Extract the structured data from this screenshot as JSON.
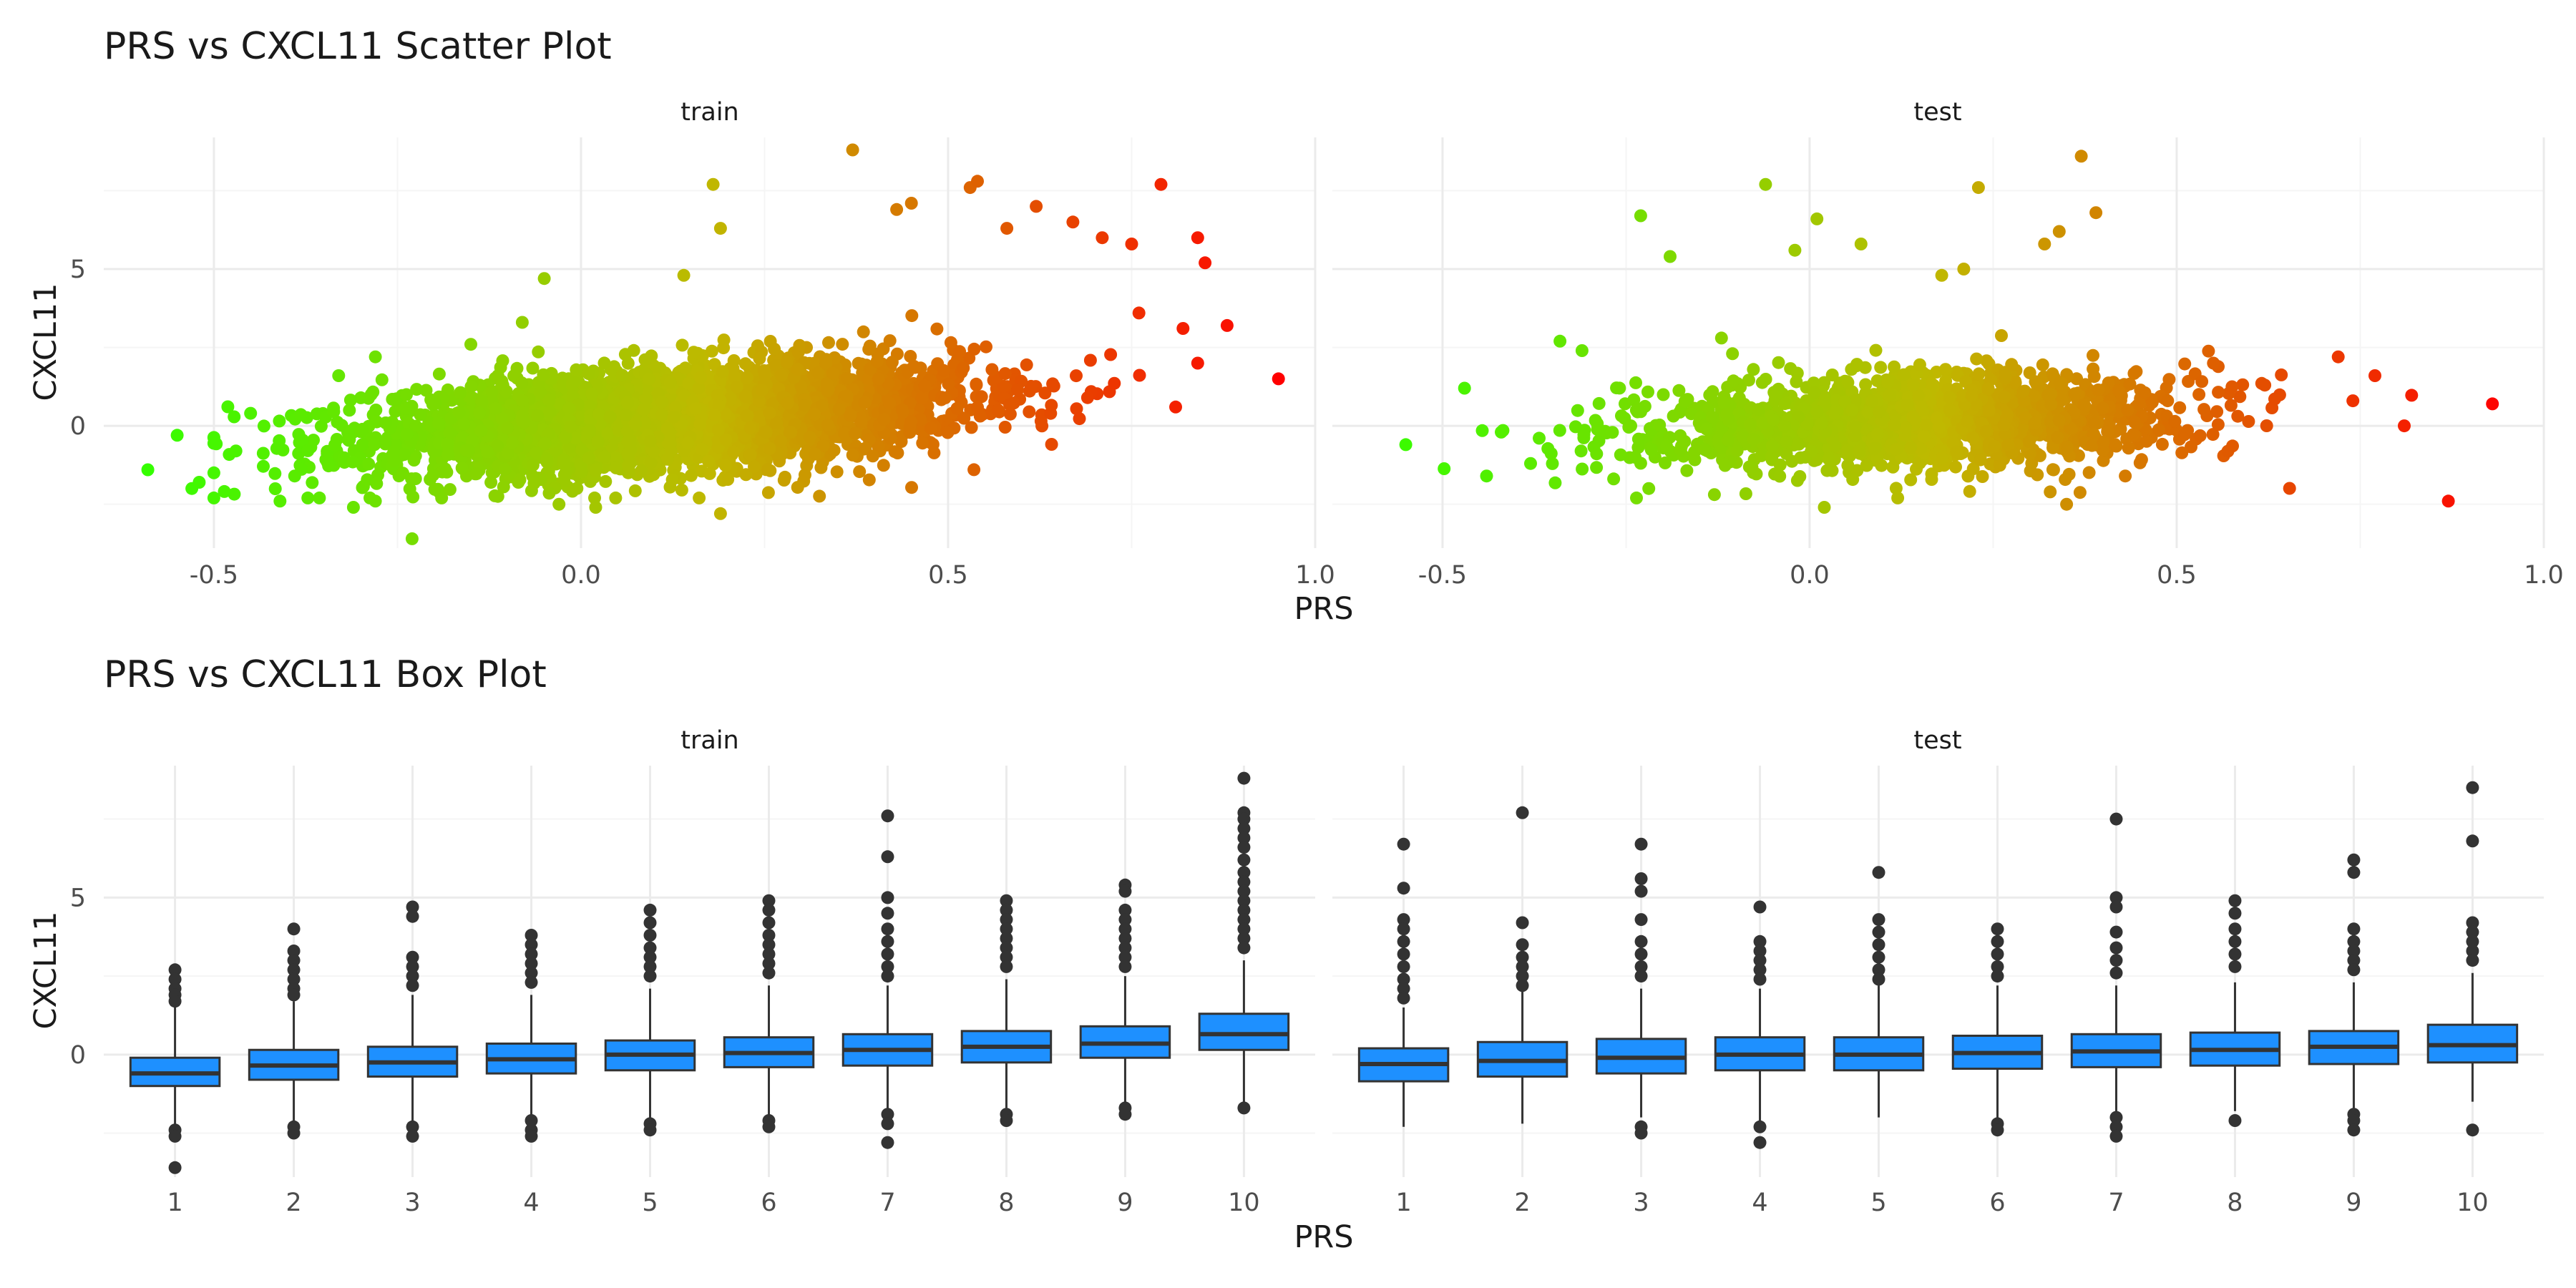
{
  "figure": {
    "colors": {
      "background": "#ffffff",
      "grid_major": "#ebebeb",
      "grid_minor": "#f5f5f5",
      "box_fill": "#1e90ff",
      "box_stroke": "#333333",
      "point_low": "#33ff00",
      "point_mid": "#c0b800",
      "point_high": "#ff0000"
    }
  },
  "chart_data": [
    {
      "type": "scatter",
      "title": "PRS vs CXCL11 Scatter Plot",
      "xlabel": "PRS",
      "ylabel": "CXCL11",
      "color_by": "PRS",
      "facets": [
        "train",
        "test"
      ],
      "xlim": [
        -0.65,
        1.0
      ],
      "ylim": [
        -3.9,
        9.2
      ],
      "x_ticks": [
        -0.5,
        0.0,
        0.5,
        1.0
      ],
      "x_tick_labels": [
        "-0.5",
        "0.0",
        "0.5",
        "1.0"
      ],
      "y_ticks": [
        0,
        5
      ],
      "y_tick_labels": [
        "0",
        "5"
      ],
      "grid": true,
      "legend": "none",
      "series": [
        {
          "facet": "train",
          "distribution": {
            "n": 3500,
            "x_mean": 0.12,
            "x_sd": 0.2,
            "intercept": 0.05,
            "slope": 1.6,
            "resid_sd": 0.8
          },
          "points": [
            [
              -0.59,
              -1.4
            ],
            [
              -0.55,
              -0.3
            ],
            [
              -0.53,
              -2.0
            ],
            [
              -0.52,
              -1.8
            ],
            [
              -0.47,
              -0.8
            ],
            [
              -0.45,
              0.4
            ],
            [
              -0.41,
              -2.4
            ],
            [
              -0.39,
              -1.6
            ],
            [
              -0.33,
              1.6
            ],
            [
              -0.31,
              -2.6
            ],
            [
              -0.28,
              -2.4
            ],
            [
              -0.28,
              2.2
            ],
            [
              -0.23,
              -3.6
            ],
            [
              -0.15,
              2.6
            ],
            [
              -0.08,
              3.3
            ],
            [
              -0.05,
              4.7
            ],
            [
              -0.03,
              -2.5
            ],
            [
              0.02,
              -2.6
            ],
            [
              0.14,
              4.8
            ],
            [
              0.18,
              7.7
            ],
            [
              0.19,
              6.3
            ],
            [
              0.19,
              -2.8
            ],
            [
              0.37,
              8.8
            ],
            [
              0.43,
              6.9
            ],
            [
              0.45,
              7.1
            ],
            [
              0.53,
              7.6
            ],
            [
              0.54,
              7.8
            ],
            [
              0.58,
              6.3
            ],
            [
              0.62,
              7.0
            ],
            [
              0.67,
              6.5
            ],
            [
              0.71,
              6.0
            ],
            [
              0.75,
              5.8
            ],
            [
              0.79,
              7.7
            ],
            [
              0.84,
              6.0
            ],
            [
              0.85,
              5.2
            ],
            [
              0.88,
              3.2
            ],
            [
              0.84,
              2.0
            ],
            [
              0.81,
              0.6
            ],
            [
              0.76,
              3.6
            ],
            [
              0.69,
              0.9
            ],
            [
              0.95,
              1.5
            ]
          ]
        },
        {
          "facet": "test",
          "distribution": {
            "n": 1500,
            "x_mean": 0.14,
            "x_sd": 0.19,
            "intercept": 0.05,
            "slope": 0.7,
            "resid_sd": 0.75
          },
          "points": [
            [
              -0.55,
              -0.6
            ],
            [
              -0.47,
              1.2
            ],
            [
              -0.44,
              -1.6
            ],
            [
              -0.42,
              -0.2
            ],
            [
              -0.38,
              -1.2
            ],
            [
              -0.34,
              2.7
            ],
            [
              -0.31,
              2.4
            ],
            [
              -0.23,
              6.7
            ],
            [
              -0.19,
              5.4
            ],
            [
              -0.12,
              2.8
            ],
            [
              -0.06,
              7.7
            ],
            [
              -0.02,
              5.6
            ],
            [
              0.01,
              6.6
            ],
            [
              0.02,
              -2.6
            ],
            [
              0.07,
              5.8
            ],
            [
              0.12,
              -2.3
            ],
            [
              0.18,
              4.8
            ],
            [
              0.21,
              5.0
            ],
            [
              0.23,
              7.6
            ],
            [
              0.32,
              5.8
            ],
            [
              0.34,
              6.2
            ],
            [
              0.37,
              8.6
            ],
            [
              0.39,
              6.8
            ],
            [
              0.35,
              -2.5
            ],
            [
              0.43,
              -1.6
            ],
            [
              0.55,
              2.0
            ],
            [
              0.62,
              1.3
            ],
            [
              0.72,
              2.2
            ],
            [
              0.74,
              0.8
            ],
            [
              0.77,
              1.6
            ],
            [
              0.81,
              0.0
            ],
            [
              0.87,
              -2.4
            ],
            [
              0.93,
              0.7
            ]
          ]
        }
      ]
    },
    {
      "type": "box",
      "title": "PRS vs CXCL11 Box Plot",
      "xlabel": "PRS",
      "ylabel": "CXCL11",
      "facets": [
        "train",
        "test"
      ],
      "categories": [
        "1",
        "2",
        "3",
        "4",
        "5",
        "6",
        "7",
        "8",
        "9",
        "10"
      ],
      "ylim": [
        -3.9,
        9.2
      ],
      "y_ticks": [
        0,
        5
      ],
      "y_tick_labels": [
        "0",
        "5"
      ],
      "grid": true,
      "legend": "none",
      "series": [
        {
          "facet": "train",
          "boxes": [
            {
              "q1": -1.0,
              "median": -0.6,
              "q3": -0.1,
              "lo": -2.3,
              "hi": 1.5,
              "outliers": [
                2.7,
                2.4,
                2.1,
                1.9,
                1.7,
                -2.4,
                -2.6,
                -3.6
              ]
            },
            {
              "q1": -0.8,
              "median": -0.35,
              "q3": 0.15,
              "lo": -2.2,
              "hi": 1.7,
              "outliers": [
                4.0,
                3.3,
                3.0,
                2.7,
                2.4,
                2.1,
                1.9,
                -2.3,
                -2.5
              ]
            },
            {
              "q1": -0.7,
              "median": -0.25,
              "q3": 0.25,
              "lo": -2.2,
              "hi": 1.9,
              "outliers": [
                4.7,
                4.4,
                3.1,
                2.8,
                2.5,
                2.2,
                -2.3,
                -2.6
              ]
            },
            {
              "q1": -0.6,
              "median": -0.15,
              "q3": 0.35,
              "lo": -2.0,
              "hi": 1.9,
              "outliers": [
                3.8,
                3.5,
                3.2,
                2.9,
                2.6,
                2.3,
                -2.1,
                -2.4,
                -2.6
              ]
            },
            {
              "q1": -0.5,
              "median": 0.0,
              "q3": 0.45,
              "lo": -2.1,
              "hi": 2.1,
              "outliers": [
                4.6,
                4.2,
                3.8,
                3.4,
                3.1,
                2.8,
                2.5,
                -2.2,
                -2.4
              ]
            },
            {
              "q1": -0.4,
              "median": 0.05,
              "q3": 0.55,
              "lo": -2.0,
              "hi": 2.2,
              "outliers": [
                4.9,
                4.6,
                4.2,
                3.8,
                3.5,
                3.2,
                2.9,
                2.6,
                -2.1,
                -2.3
              ]
            },
            {
              "q1": -0.35,
              "median": 0.15,
              "q3": 0.65,
              "lo": -1.8,
              "hi": 2.2,
              "outliers": [
                7.6,
                6.3,
                5.0,
                4.5,
                4.0,
                3.6,
                3.2,
                2.8,
                2.5,
                -1.9,
                -2.2,
                -2.8
              ]
            },
            {
              "q1": -0.25,
              "median": 0.25,
              "q3": 0.75,
              "lo": -1.7,
              "hi": 2.4,
              "outliers": [
                4.9,
                4.6,
                4.3,
                4.0,
                3.7,
                3.4,
                3.1,
                2.8,
                -1.9,
                -2.1
              ]
            },
            {
              "q1": -0.1,
              "median": 0.35,
              "q3": 0.9,
              "lo": -1.6,
              "hi": 2.5,
              "outliers": [
                5.4,
                5.2,
                4.6,
                4.3,
                4.0,
                3.7,
                3.4,
                3.1,
                2.8,
                -1.7,
                -1.9
              ]
            },
            {
              "q1": 0.15,
              "median": 0.65,
              "q3": 1.3,
              "lo": -1.5,
              "hi": 3.0,
              "outliers": [
                8.8,
                7.7,
                7.5,
                7.2,
                6.9,
                6.6,
                6.2,
                5.8,
                5.5,
                5.2,
                4.9,
                4.6,
                4.3,
                4.0,
                3.7,
                3.4,
                -1.7
              ]
            }
          ]
        },
        {
          "facet": "test",
          "boxes": [
            {
              "q1": -0.85,
              "median": -0.3,
              "q3": 0.2,
              "lo": -2.3,
              "hi": 1.5,
              "outliers": [
                6.7,
                5.3,
                4.3,
                4.0,
                3.6,
                3.2,
                2.8,
                2.4,
                2.1,
                1.8
              ]
            },
            {
              "q1": -0.7,
              "median": -0.2,
              "q3": 0.4,
              "lo": -2.2,
              "hi": 2.0,
              "outliers": [
                7.7,
                4.2,
                3.5,
                3.1,
                2.8,
                2.5,
                2.2
              ]
            },
            {
              "q1": -0.6,
              "median": -0.1,
              "q3": 0.5,
              "lo": -2.0,
              "hi": 2.1,
              "outliers": [
                6.7,
                5.6,
                5.2,
                4.3,
                3.6,
                3.2,
                2.8,
                2.5,
                -2.3,
                -2.5
              ]
            },
            {
              "q1": -0.5,
              "median": 0.0,
              "q3": 0.55,
              "lo": -2.1,
              "hi": 2.1,
              "outliers": [
                4.7,
                3.6,
                3.3,
                3.0,
                2.7,
                2.4,
                -2.3,
                -2.8
              ]
            },
            {
              "q1": -0.5,
              "median": 0.0,
              "q3": 0.55,
              "lo": -2.0,
              "hi": 2.2,
              "outliers": [
                5.8,
                4.3,
                3.9,
                3.5,
                3.1,
                2.7,
                2.4
              ]
            },
            {
              "q1": -0.45,
              "median": 0.05,
              "q3": 0.6,
              "lo": -2.0,
              "hi": 2.2,
              "outliers": [
                4.0,
                3.6,
                3.2,
                2.8,
                2.5,
                -2.2,
                -2.4
              ]
            },
            {
              "q1": -0.4,
              "median": 0.1,
              "q3": 0.65,
              "lo": -1.9,
              "hi": 2.2,
              "outliers": [
                7.5,
                5.0,
                4.7,
                3.9,
                3.4,
                3.0,
                2.6,
                -2.0,
                -2.3,
                -2.6
              ]
            },
            {
              "q1": -0.35,
              "median": 0.15,
              "q3": 0.7,
              "lo": -1.8,
              "hi": 2.3,
              "outliers": [
                4.9,
                4.5,
                4.0,
                3.6,
                3.2,
                2.8,
                -2.1
              ]
            },
            {
              "q1": -0.3,
              "median": 0.25,
              "q3": 0.75,
              "lo": -1.7,
              "hi": 2.3,
              "outliers": [
                6.2,
                5.8,
                4.0,
                3.6,
                3.3,
                3.0,
                2.7,
                -1.9,
                -2.1,
                -2.4
              ]
            },
            {
              "q1": -0.25,
              "median": 0.3,
              "q3": 0.95,
              "lo": -1.5,
              "hi": 2.6,
              "outliers": [
                8.5,
                6.8,
                4.2,
                3.9,
                3.6,
                3.3,
                3.0,
                -2.4
              ]
            }
          ]
        }
      ]
    }
  ]
}
